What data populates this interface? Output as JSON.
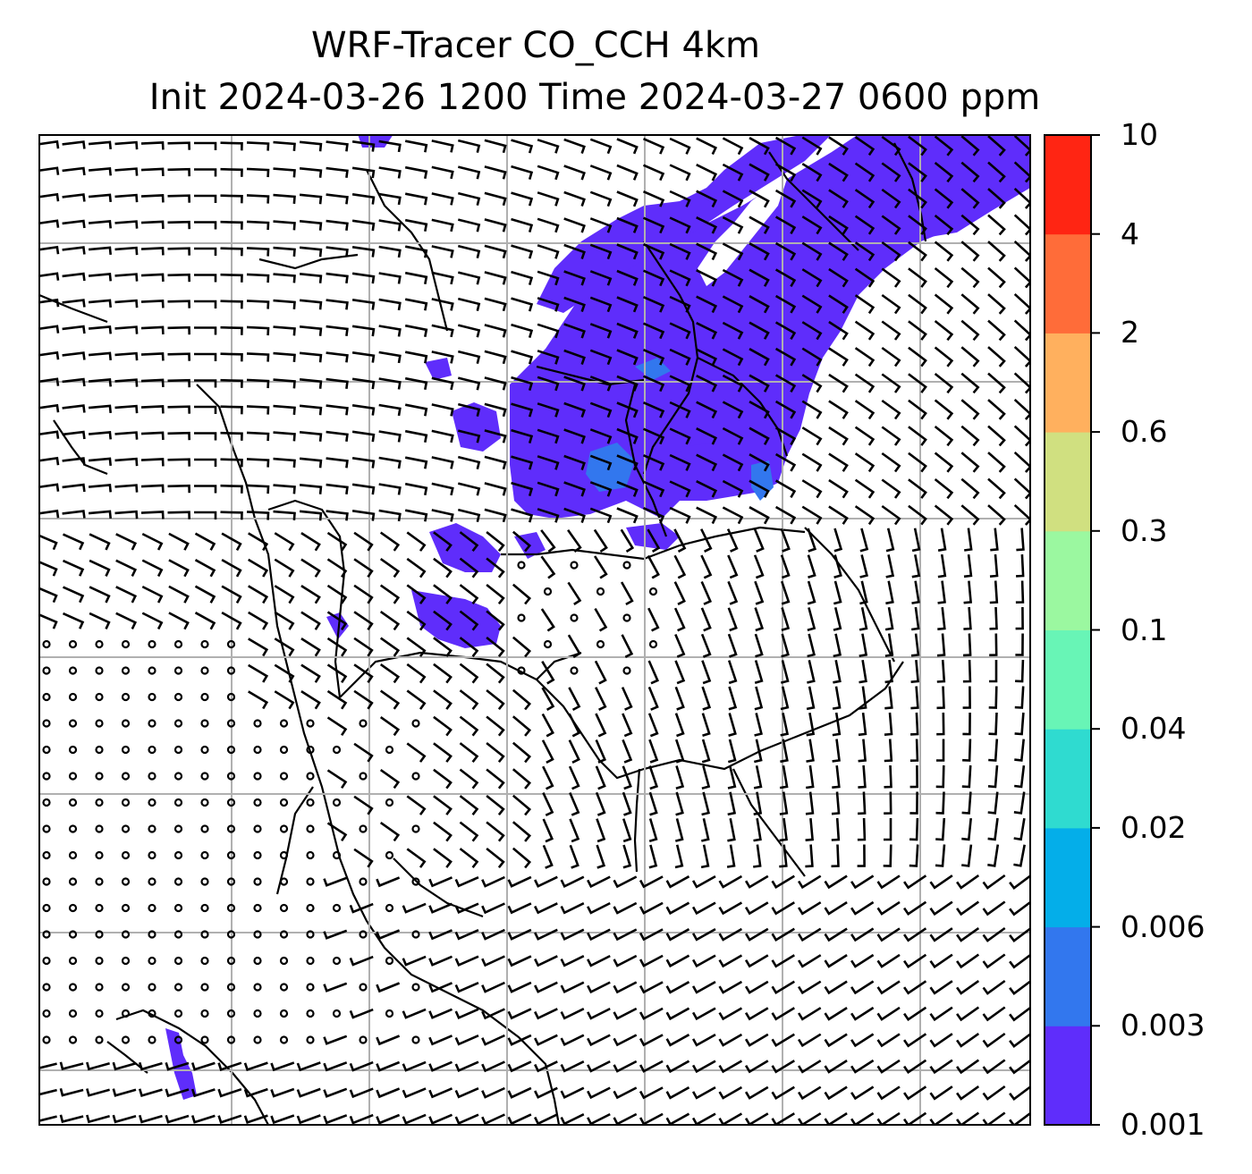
{
  "title": {
    "line1": "WRF-Tracer CO_CCH 4km",
    "line2": "Init 2024-03-26 1200 Time 2024-03-27 0600 ppm"
  },
  "colorbar": {
    "levels": [
      "0.001",
      "0.003",
      "0.006",
      "0.02",
      "0.04",
      "0.1",
      "0.3",
      "0.6",
      "2",
      "4",
      "10"
    ],
    "colors": [
      "#5f2dfb",
      "#3277ee",
      "#04aee9",
      "#2fdbd0",
      "#68f5b6",
      "#9bf8a0",
      "#d0e080",
      "#ffb05e",
      "#ff6c39",
      "#ff2513"
    ]
  },
  "map": {
    "field_color": "#5f2dfb",
    "highlight_color": "#3277ee",
    "gridline_color": "#b0b0b0",
    "wind_barbs": "black",
    "coastlines": "black"
  }
}
